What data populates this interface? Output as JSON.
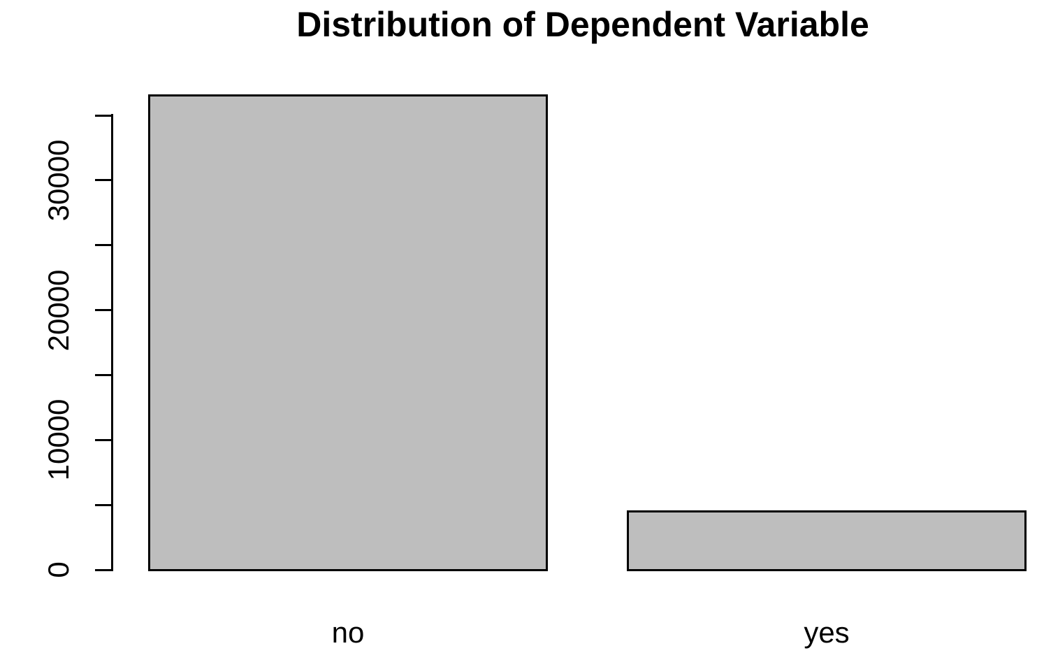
{
  "chart_data": {
    "type": "bar",
    "title": "Distribution of Dependent Variable",
    "categories": [
      "no",
      "yes"
    ],
    "values": [
      36600,
      4600
    ],
    "xlabel": "",
    "ylabel": "",
    "ylim": [
      0,
      35000
    ],
    "yticks": [
      0,
      5000,
      10000,
      15000,
      20000,
      25000,
      30000,
      35000
    ],
    "ytick_labels": [
      "0",
      "",
      "10000",
      "",
      "20000",
      "",
      "30000",
      ""
    ],
    "grid": false,
    "legend": false,
    "bar_fill_color": "#bebebe",
    "bar_border_color": "#000000",
    "background_color": "#ffffff"
  }
}
